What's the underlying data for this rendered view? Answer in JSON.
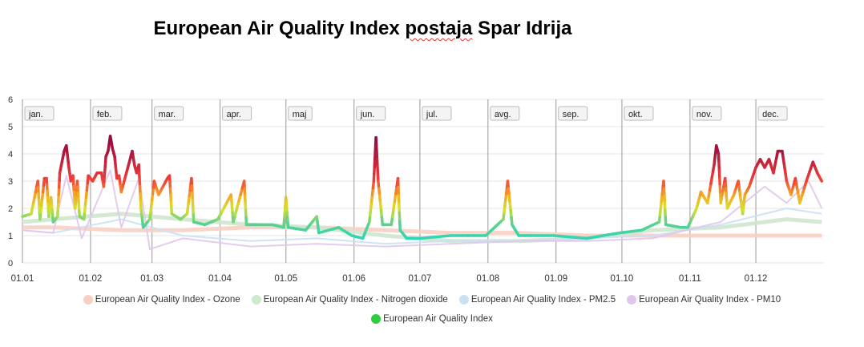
{
  "title_main": "European Air Quality Index",
  "title_station": "postaja",
  "title_rest": "Spar Idrija",
  "chart_data": {
    "type": "line",
    "title": "European Air Quality Index postaja Spar Idrija",
    "ylim": [
      0,
      6
    ],
    "y_ticks": [
      "0",
      "1",
      "2",
      "3",
      "4",
      "5",
      "6"
    ],
    "x_ticks": [
      "01.01",
      "01.02",
      "01.03",
      "01.04",
      "01.05",
      "01.06",
      "01.07",
      "01.08",
      "01.09",
      "01.10",
      "01.11",
      "01.12"
    ],
    "month_labels": [
      "jan.",
      "feb.",
      "mar.",
      "apr.",
      "maj",
      "jun.",
      "jul.",
      "avg.",
      "sep.",
      "okt.",
      "nov.",
      "dec."
    ],
    "grid": true,
    "legend_position": "bottom",
    "series": [
      {
        "name": "European Air Quality Index - Ozone",
        "color": "#f8cfc3",
        "points": [
          [
            "01.01",
            1.3
          ],
          [
            "15.01",
            1.3
          ],
          [
            "15.02",
            1.2
          ],
          [
            "15.03",
            1.2
          ],
          [
            "15.04",
            1.3
          ],
          [
            "15.05",
            1.3
          ],
          [
            "15.06",
            1.2
          ],
          [
            "15.07",
            1.1
          ],
          [
            "15.08",
            1.1
          ],
          [
            "15.09",
            1.0
          ],
          [
            "15.10",
            1.0
          ],
          [
            "15.11",
            1.0
          ],
          [
            "15.12",
            1.0
          ],
          [
            "31.12",
            1.0
          ]
        ]
      },
      {
        "name": "European Air Quality Index - Nitrogen dioxide",
        "color": "#cfe6cf",
        "points": [
          [
            "01.01",
            1.5
          ],
          [
            "15.01",
            1.6
          ],
          [
            "15.02",
            1.8
          ],
          [
            "15.03",
            1.6
          ],
          [
            "15.04",
            1.4
          ],
          [
            "15.05",
            1.3
          ],
          [
            "15.06",
            1.0
          ],
          [
            "15.07",
            0.8
          ],
          [
            "15.08",
            0.8
          ],
          [
            "15.09",
            0.9
          ],
          [
            "15.10",
            1.2
          ],
          [
            "15.11",
            1.3
          ],
          [
            "15.12",
            1.6
          ],
          [
            "31.12",
            1.5
          ]
        ]
      },
      {
        "name": "European Air Quality Index - PM2.5",
        "color": "#c9e0f5",
        "points": [
          [
            "01.01",
            1.2
          ],
          [
            "15.01",
            1.1
          ],
          [
            "15.02",
            1.6
          ],
          [
            "15.03",
            1.0
          ],
          [
            "15.04",
            0.8
          ],
          [
            "15.05",
            0.9
          ],
          [
            "15.06",
            0.7
          ],
          [
            "15.07",
            0.8
          ],
          [
            "15.08",
            0.8
          ],
          [
            "15.09",
            0.9
          ],
          [
            "15.10",
            1.0
          ],
          [
            "15.11",
            1.4
          ],
          [
            "15.12",
            2.0
          ],
          [
            "31.12",
            1.8
          ]
        ]
      },
      {
        "name": "European Air Quality Index - PM10",
        "color": "#e0c6ec",
        "points": [
          [
            "01.01",
            1.2
          ],
          [
            "15.01",
            1.1
          ],
          [
            "21.01",
            3.2
          ],
          [
            "28.01",
            0.9
          ],
          [
            "10.02",
            3.4
          ],
          [
            "15.02",
            1.3
          ],
          [
            "23.02",
            3.1
          ],
          [
            "28.02",
            0.5
          ],
          [
            "15.03",
            0.9
          ],
          [
            "15.04",
            0.6
          ],
          [
            "15.05",
            0.7
          ],
          [
            "15.06",
            0.6
          ],
          [
            "15.07",
            0.7
          ],
          [
            "15.08",
            0.8
          ],
          [
            "15.09",
            0.8
          ],
          [
            "15.10",
            0.9
          ],
          [
            "15.11",
            1.5
          ],
          [
            "05.12",
            2.8
          ],
          [
            "15.12",
            2.2
          ],
          [
            "25.12",
            3.0
          ],
          [
            "31.12",
            2.0
          ]
        ]
      },
      {
        "name": "European Air Quality Index",
        "color": "#2ecc40",
        "points": [
          [
            "01.01",
            1.7
          ],
          [
            "05.01",
            1.8
          ],
          [
            "08.01",
            3.0
          ],
          [
            "09.01",
            1.6
          ],
          [
            "11.01",
            3.1
          ],
          [
            "12.01",
            3.1
          ],
          [
            "13.01",
            1.7
          ],
          [
            "14.01",
            2.4
          ],
          [
            "15.01",
            1.5
          ],
          [
            "17.01",
            1.7
          ],
          [
            "18.01",
            3.3
          ],
          [
            "20.01",
            4.1
          ],
          [
            "21.01",
            4.3
          ],
          [
            "22.01",
            3.6
          ],
          [
            "23.01",
            3.0
          ],
          [
            "24.01",
            3.2
          ],
          [
            "25.01",
            2.0
          ],
          [
            "26.01",
            3.0
          ],
          [
            "27.01",
            1.7
          ],
          [
            "29.01",
            1.6
          ],
          [
            "31.01",
            3.2
          ],
          [
            "02.02",
            3.0
          ],
          [
            "04.02",
            3.3
          ],
          [
            "06.02",
            3.3
          ],
          [
            "07.02",
            2.8
          ],
          [
            "08.02",
            3.9
          ],
          [
            "09.02",
            4.1
          ],
          [
            "10.02",
            4.65
          ],
          [
            "11.02",
            4.2
          ],
          [
            "12.02",
            3.9
          ],
          [
            "13.02",
            3.1
          ],
          [
            "14.02",
            3.2
          ],
          [
            "15.02",
            2.6
          ],
          [
            "17.02",
            3.2
          ],
          [
            "19.02",
            3.8
          ],
          [
            "20.02",
            4.1
          ],
          [
            "21.02",
            3.6
          ],
          [
            "22.02",
            3.3
          ],
          [
            "23.02",
            3.6
          ],
          [
            "24.02",
            2.0
          ],
          [
            "25.02",
            1.3
          ],
          [
            "28.02",
            1.6
          ],
          [
            "02.03",
            3.0
          ],
          [
            "04.03",
            2.5
          ],
          [
            "06.03",
            2.8
          ],
          [
            "08.03",
            3.1
          ],
          [
            "09.03",
            3.2
          ],
          [
            "10.03",
            1.8
          ],
          [
            "14.03",
            1.6
          ],
          [
            "17.03",
            1.8
          ],
          [
            "19.03",
            3.1
          ],
          [
            "20.03",
            1.5
          ],
          [
            "25.03",
            1.4
          ],
          [
            "31.03",
            1.6
          ],
          [
            "06.04",
            2.5
          ],
          [
            "07.04",
            1.5
          ],
          [
            "12.04",
            3.0
          ],
          [
            "13.04",
            1.4
          ],
          [
            "25.04",
            1.4
          ],
          [
            "30.04",
            1.3
          ],
          [
            "01.05",
            2.4
          ],
          [
            "02.05",
            1.3
          ],
          [
            "10.05",
            1.2
          ],
          [
            "15.05",
            1.7
          ],
          [
            "16.05",
            1.1
          ],
          [
            "25.05",
            1.3
          ],
          [
            "31.05",
            1.0
          ],
          [
            "05.06",
            0.9
          ],
          [
            "08.06",
            1.5
          ],
          [
            "10.06",
            3.0
          ],
          [
            "11.06",
            4.6
          ],
          [
            "12.06",
            3.0
          ],
          [
            "14.06",
            1.4
          ],
          [
            "18.06",
            1.4
          ],
          [
            "21.06",
            3.1
          ],
          [
            "22.06",
            1.2
          ],
          [
            "25.06",
            0.9
          ],
          [
            "01.07",
            0.9
          ],
          [
            "15.07",
            1.0
          ],
          [
            "31.07",
            1.0
          ],
          [
            "08.08",
            1.6
          ],
          [
            "10.08",
            3.0
          ],
          [
            "12.08",
            1.4
          ],
          [
            "15.08",
            1.0
          ],
          [
            "31.08",
            1.0
          ],
          [
            "15.09",
            0.9
          ],
          [
            "30.09",
            1.1
          ],
          [
            "10.10",
            1.2
          ],
          [
            "18.10",
            1.5
          ],
          [
            "20.10",
            3.0
          ],
          [
            "21.10",
            1.4
          ],
          [
            "28.10",
            1.3
          ],
          [
            "31.10",
            1.3
          ],
          [
            "04.11",
            2.0
          ],
          [
            "06.11",
            2.6
          ],
          [
            "09.11",
            2.2
          ],
          [
            "12.11",
            3.6
          ],
          [
            "13.11",
            4.3
          ],
          [
            "14.11",
            4.0
          ],
          [
            "15.11",
            2.2
          ],
          [
            "17.11",
            3.1
          ],
          [
            "18.11",
            2.0
          ],
          [
            "21.11",
            2.5
          ],
          [
            "23.11",
            3.0
          ],
          [
            "25.11",
            1.8
          ],
          [
            "26.11",
            2.5
          ],
          [
            "28.11",
            2.8
          ],
          [
            "01.12",
            3.5
          ],
          [
            "03.12",
            3.8
          ],
          [
            "05.12",
            3.5
          ],
          [
            "07.12",
            3.8
          ],
          [
            "09.12",
            3.3
          ],
          [
            "11.12",
            4.1
          ],
          [
            "13.12",
            4.1
          ],
          [
            "15.12",
            3.0
          ],
          [
            "17.12",
            2.5
          ],
          [
            "19.12",
            3.1
          ],
          [
            "21.12",
            2.2
          ],
          [
            "24.12",
            3.0
          ],
          [
            "27.12",
            3.7
          ],
          [
            "29.12",
            3.3
          ],
          [
            "31.12",
            3.0
          ]
        ]
      }
    ]
  }
}
